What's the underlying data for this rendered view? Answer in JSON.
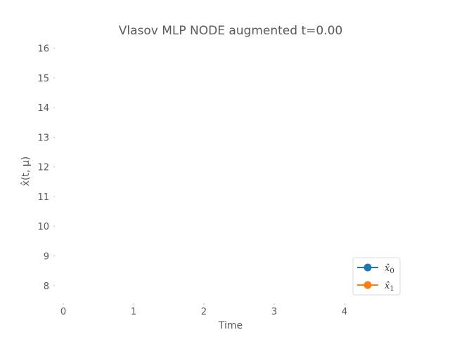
{
  "chart_data": {
    "type": "line",
    "title": "Vlasov MLP NODE augmented t=0.00",
    "xlabel": "Time",
    "ylabel": "x̂(t, μ)",
    "xlim": [
      -0.05,
      4.95
    ],
    "ylim": [
      7.45,
      16.3
    ],
    "x_ticks": [
      "0",
      "1",
      "2",
      "3",
      "4"
    ],
    "y_ticks": [
      "8",
      "9",
      "10",
      "11",
      "12",
      "13",
      "14",
      "15",
      "16"
    ],
    "grid": false,
    "legend_position": "lower-right",
    "series": [
      {
        "name": "x̂0",
        "label_base": "x̂",
        "label_sub": "0",
        "color": "#1f77b4",
        "x": [],
        "y": []
      },
      {
        "name": "x̂1",
        "label_base": "x̂",
        "label_sub": "1",
        "color": "#ff7f0e",
        "x": [],
        "y": []
      }
    ]
  }
}
